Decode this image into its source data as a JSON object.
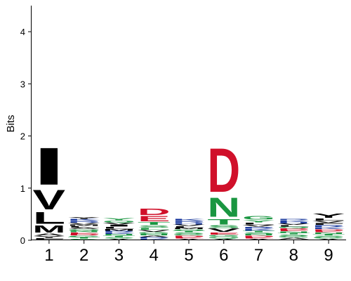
{
  "chart_data": {
    "type": "sequence-logo",
    "ylabel": "Bits",
    "ylim": [
      0,
      4.5
    ],
    "y_ticks": [
      "0",
      "1",
      "2",
      "3",
      "4"
    ],
    "y_tick_values": [
      0,
      1,
      2,
      3,
      4
    ],
    "x_ticks": [
      "1",
      "2",
      "3",
      "4",
      "5",
      "6",
      "7",
      "8",
      "9"
    ],
    "colors": {
      "hydrophobic": "#000000",
      "acidic": "#d0102a",
      "basic": "#1f3ea0",
      "polar": "#1a9641",
      "neutral": "#7f6f9e",
      "special": "#f2a1a8",
      "other": "#9e9e9e"
    },
    "positions": [
      {
        "position": "1",
        "letters": [
          {
            "aa": "F",
            "height": 0.04,
            "color": "#000000"
          },
          {
            "aa": "Y",
            "height": 0.04,
            "color": "#000000"
          },
          {
            "aa": "A",
            "height": 0.05,
            "color": "#000000"
          },
          {
            "aa": "M",
            "height": 0.16,
            "color": "#000000"
          },
          {
            "aa": "L",
            "height": 0.26,
            "color": "#000000"
          },
          {
            "aa": "V",
            "height": 0.43,
            "color": "#000000"
          },
          {
            "aa": "I",
            "height": 0.82,
            "color": "#000000"
          }
        ]
      },
      {
        "position": "2",
        "letters": [
          {
            "aa": "S",
            "height": 0.03,
            "color": "#1a9641"
          },
          {
            "aa": "T",
            "height": 0.03,
            "color": "#1a9641"
          },
          {
            "aa": "G",
            "height": 0.03,
            "color": "#1a9641"
          },
          {
            "aa": "D",
            "height": 0.03,
            "color": "#d0102a"
          },
          {
            "aa": "E",
            "height": 0.03,
            "color": "#d0102a"
          },
          {
            "aa": "N",
            "height": 0.03,
            "color": "#1a9641"
          },
          {
            "aa": "Q",
            "height": 0.03,
            "color": "#1a9641"
          },
          {
            "aa": "A",
            "height": 0.03,
            "color": "#000000"
          },
          {
            "aa": "L",
            "height": 0.03,
            "color": "#000000"
          },
          {
            "aa": "M",
            "height": 0.03,
            "color": "#000000"
          },
          {
            "aa": "V",
            "height": 0.03,
            "color": "#000000"
          },
          {
            "aa": "R",
            "height": 0.04,
            "color": "#1f3ea0"
          },
          {
            "aa": "K",
            "height": 0.04,
            "color": "#1f3ea0"
          },
          {
            "aa": "Y",
            "height": 0.04,
            "color": "#000000"
          }
        ]
      },
      {
        "position": "3",
        "letters": [
          {
            "aa": "A",
            "height": 0.03,
            "color": "#000000"
          },
          {
            "aa": "S",
            "height": 0.03,
            "color": "#1a9641"
          },
          {
            "aa": "T",
            "height": 0.03,
            "color": "#1a9641"
          },
          {
            "aa": "N",
            "height": 0.03,
            "color": "#1a9641"
          },
          {
            "aa": "K",
            "height": 0.03,
            "color": "#1f3ea0"
          },
          {
            "aa": "R",
            "height": 0.03,
            "color": "#1f3ea0"
          },
          {
            "aa": "M",
            "height": 0.04,
            "color": "#000000"
          },
          {
            "aa": "L",
            "height": 0.04,
            "color": "#000000"
          },
          {
            "aa": "I",
            "height": 0.04,
            "color": "#000000"
          },
          {
            "aa": "V",
            "height": 0.04,
            "color": "#000000"
          },
          {
            "aa": "Q",
            "height": 0.04,
            "color": "#1a9641"
          },
          {
            "aa": "Y",
            "height": 0.05,
            "color": "#1a9641"
          }
        ]
      },
      {
        "position": "4",
        "letters": [
          {
            "aa": "K",
            "height": 0.03,
            "color": "#1f3ea0"
          },
          {
            "aa": "R",
            "height": 0.03,
            "color": "#1f3ea0"
          },
          {
            "aa": "A",
            "height": 0.03,
            "color": "#000000"
          },
          {
            "aa": "N",
            "height": 0.03,
            "color": "#1a9641"
          },
          {
            "aa": "G",
            "height": 0.04,
            "color": "#1a9641"
          },
          {
            "aa": "V",
            "height": 0.04,
            "color": "#000000"
          },
          {
            "aa": "L",
            "height": 0.04,
            "color": "#1a9641"
          },
          {
            "aa": "S",
            "height": 0.05,
            "color": "#1a9641"
          },
          {
            "aa": "T",
            "height": 0.06,
            "color": "#1a9641"
          },
          {
            "aa": "E",
            "height": 0.12,
            "color": "#d0102a"
          },
          {
            "aa": "D",
            "height": 0.14,
            "color": "#d0102a"
          }
        ]
      },
      {
        "position": "5",
        "letters": [
          {
            "aa": "A",
            "height": 0.03,
            "color": "#000000"
          },
          {
            "aa": "E",
            "height": 0.03,
            "color": "#d0102a"
          },
          {
            "aa": "D",
            "height": 0.03,
            "color": "#d0102a"
          },
          {
            "aa": "G",
            "height": 0.03,
            "color": "#1a9641"
          },
          {
            "aa": "S",
            "height": 0.03,
            "color": "#1a9641"
          },
          {
            "aa": "T",
            "height": 0.03,
            "color": "#1a9641"
          },
          {
            "aa": "Q",
            "height": 0.03,
            "color": "#1a9641"
          },
          {
            "aa": "M",
            "height": 0.03,
            "color": "#000000"
          },
          {
            "aa": "L",
            "height": 0.03,
            "color": "#000000"
          },
          {
            "aa": "V",
            "height": 0.03,
            "color": "#000000"
          },
          {
            "aa": "H",
            "height": 0.03,
            "color": "#1f3ea0"
          },
          {
            "aa": "R",
            "height": 0.04,
            "color": "#1f3ea0"
          },
          {
            "aa": "K",
            "height": 0.04,
            "color": "#1f3ea0"
          }
        ]
      },
      {
        "position": "6",
        "letters": [
          {
            "aa": "A",
            "height": 0.03,
            "color": "#000000"
          },
          {
            "aa": "Q",
            "height": 0.03,
            "color": "#1a9641"
          },
          {
            "aa": "G",
            "height": 0.04,
            "color": "#1a9641"
          },
          {
            "aa": "E",
            "height": 0.05,
            "color": "#d0102a"
          },
          {
            "aa": "V",
            "height": 0.08,
            "color": "#000000"
          },
          {
            "aa": "S",
            "height": 0.06,
            "color": "#1a9641"
          },
          {
            "aa": "T",
            "height": 0.12,
            "color": "#1a9641"
          },
          {
            "aa": "N",
            "height": 0.42,
            "color": "#1a9641"
          },
          {
            "aa": "D",
            "height": 0.97,
            "color": "#d0102a"
          }
        ]
      },
      {
        "position": "7",
        "letters": [
          {
            "aa": "A",
            "height": 0.03,
            "color": "#000000"
          },
          {
            "aa": "E",
            "height": 0.03,
            "color": "#d0102a"
          },
          {
            "aa": "D",
            "height": 0.03,
            "color": "#d0102a"
          },
          {
            "aa": "N",
            "height": 0.03,
            "color": "#1a9641"
          },
          {
            "aa": "S",
            "height": 0.03,
            "color": "#1a9641"
          },
          {
            "aa": "T",
            "height": 0.03,
            "color": "#1a9641"
          },
          {
            "aa": "K",
            "height": 0.04,
            "color": "#1f3ea0"
          },
          {
            "aa": "R",
            "height": 0.04,
            "color": "#1f3ea0"
          },
          {
            "aa": "V",
            "height": 0.04,
            "color": "#000000"
          },
          {
            "aa": "L",
            "height": 0.04,
            "color": "#000000"
          },
          {
            "aa": "Y",
            "height": 0.05,
            "color": "#1a9641"
          },
          {
            "aa": "G",
            "height": 0.08,
            "color": "#1a9641"
          }
        ]
      },
      {
        "position": "8",
        "letters": [
          {
            "aa": "P",
            "height": 0.02,
            "color": "#9e9e9e"
          },
          {
            "aa": "A",
            "height": 0.03,
            "color": "#000000"
          },
          {
            "aa": "G",
            "height": 0.03,
            "color": "#1a9641"
          },
          {
            "aa": "S",
            "height": 0.03,
            "color": "#1a9641"
          },
          {
            "aa": "T",
            "height": 0.03,
            "color": "#1a9641"
          },
          {
            "aa": "N",
            "height": 0.03,
            "color": "#1a9641"
          },
          {
            "aa": "E",
            "height": 0.03,
            "color": "#d0102a"
          },
          {
            "aa": "D",
            "height": 0.03,
            "color": "#d0102a"
          },
          {
            "aa": "Q",
            "height": 0.03,
            "color": "#1a9641"
          },
          {
            "aa": "L",
            "height": 0.03,
            "color": "#000000"
          },
          {
            "aa": "V",
            "height": 0.03,
            "color": "#000000"
          },
          {
            "aa": "H",
            "height": 0.03,
            "color": "#1f3ea0"
          },
          {
            "aa": "K",
            "height": 0.03,
            "color": "#1f3ea0"
          },
          {
            "aa": "R",
            "height": 0.03,
            "color": "#1f3ea0"
          }
        ]
      },
      {
        "position": "9",
        "letters": [
          {
            "aa": "A",
            "height": 0.03,
            "color": "#000000"
          },
          {
            "aa": "G",
            "height": 0.03,
            "color": "#1a9641"
          },
          {
            "aa": "S",
            "height": 0.03,
            "color": "#1a9641"
          },
          {
            "aa": "T",
            "height": 0.03,
            "color": "#1a9641"
          },
          {
            "aa": "N",
            "height": 0.03,
            "color": "#1a9641"
          },
          {
            "aa": "E",
            "height": 0.03,
            "color": "#d0102a"
          },
          {
            "aa": "D",
            "height": 0.03,
            "color": "#d0102a"
          },
          {
            "aa": "K",
            "height": 0.04,
            "color": "#1f3ea0"
          },
          {
            "aa": "R",
            "height": 0.04,
            "color": "#1f3ea0"
          },
          {
            "aa": "F",
            "height": 0.04,
            "color": "#000000"
          },
          {
            "aa": "V",
            "height": 0.04,
            "color": "#000000"
          },
          {
            "aa": "L",
            "height": 0.05,
            "color": "#000000"
          },
          {
            "aa": "Y",
            "height": 0.09,
            "color": "#000000"
          }
        ]
      }
    ]
  }
}
